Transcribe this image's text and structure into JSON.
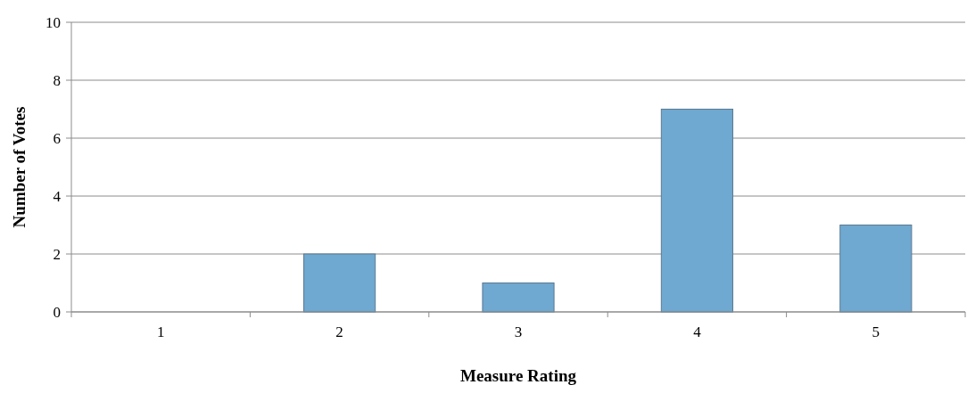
{
  "chart_data": {
    "type": "bar",
    "xlabel": "Measure Rating",
    "ylabel": "Number of Votes",
    "categories": [
      "1",
      "2",
      "3",
      "4",
      "5"
    ],
    "values": [
      0,
      2,
      1,
      7,
      3
    ],
    "color": "#6fa8d0",
    "ylim": [
      0,
      10
    ],
    "yticks": [
      0,
      2,
      4,
      6,
      8,
      10
    ],
    "grid": "y"
  }
}
